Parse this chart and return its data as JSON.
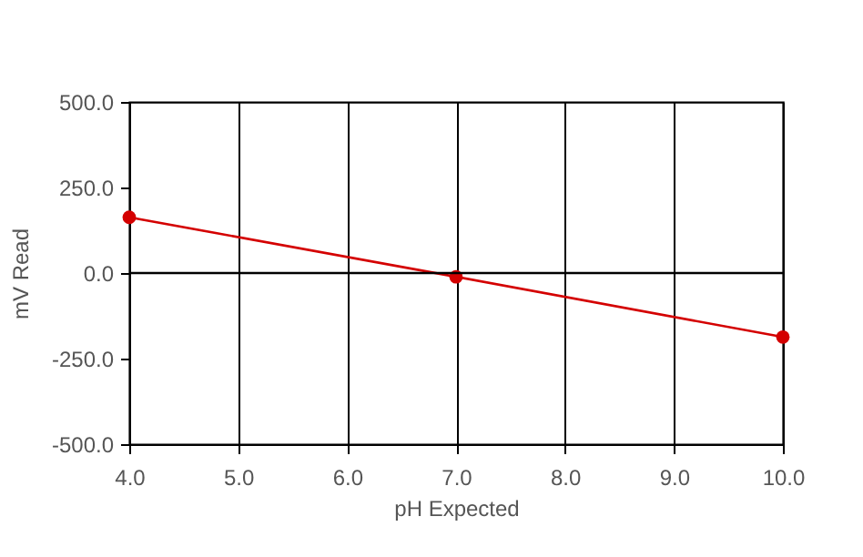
{
  "chart_data": {
    "type": "line",
    "xlabel": "pH Expected",
    "ylabel": "mV Read",
    "x": [
      4,
      7,
      10
    ],
    "series": [
      {
        "color": "#d40000",
        "values": [
          163,
          -11,
          -187
        ]
      }
    ],
    "xlim": [
      4,
      10
    ],
    "xticks": [
      {
        "value": 4,
        "label": "4.0"
      },
      {
        "value": 5,
        "label": "5.0"
      },
      {
        "value": 6,
        "label": "6.0"
      },
      {
        "value": 7,
        "label": "7.0"
      },
      {
        "value": 8,
        "label": "8.0"
      },
      {
        "value": 9,
        "label": "9.0"
      },
      {
        "value": 10,
        "label": "10.0"
      }
    ],
    "ylim": [
      -500,
      500
    ],
    "yticks": [
      {
        "value": -500,
        "label": "-500.0"
      },
      {
        "value": -250,
        "label": "-250.0"
      },
      {
        "value": 0,
        "label": "0.0"
      },
      {
        "value": 250,
        "label": "250.0"
      },
      {
        "value": 500,
        "label": "500.0"
      }
    ],
    "ref_lines": [
      {
        "axis": "y",
        "value": 0,
        "color": "#000000"
      }
    ],
    "grid": "x",
    "marker": "circle",
    "line_style": "solid"
  }
}
